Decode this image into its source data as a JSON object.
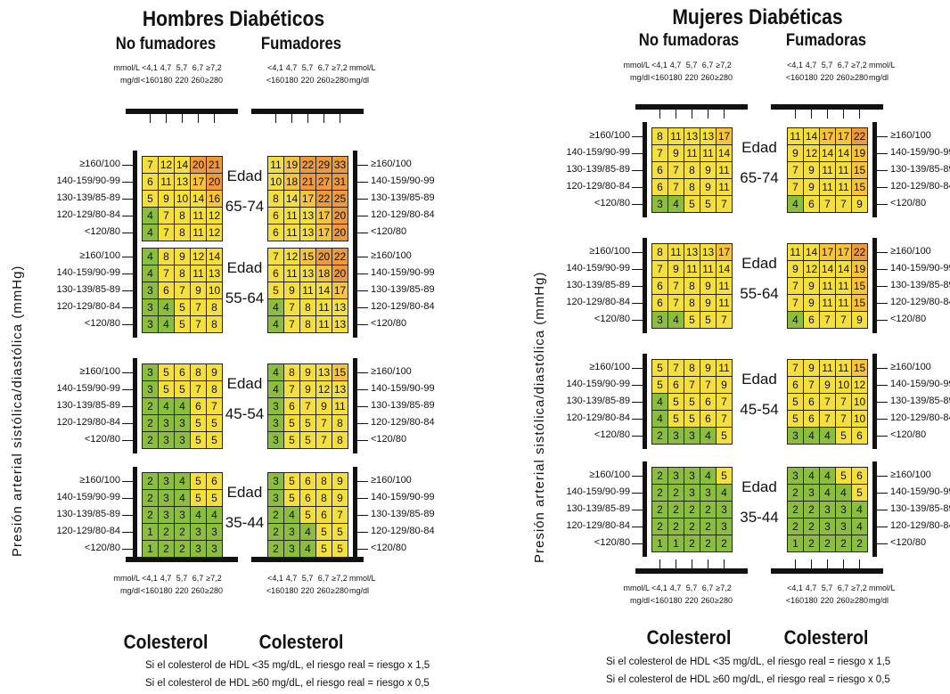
{
  "chart_data": {
    "type": "table",
    "ylabel": "Presión arterial sistólica/diastólica (mmHg)",
    "bp_rows": [
      "≥160/100",
      "140-159/90-99",
      "130-139/85-89",
      "120-129/80-84",
      "<120/80"
    ],
    "age_label": "Edad",
    "chol_mmol_row": {
      "unit": "mmol/L",
      "values": [
        "<4,1",
        "4,7",
        "5,7",
        "6,7",
        "≥7,2"
      ]
    },
    "chol_mgdl_row": {
      "unit": "mg/dl",
      "values": [
        "<160",
        "180",
        "220",
        "260",
        "≥280"
      ]
    },
    "chol_mmol_row_right": {
      "unit": "mmol/L",
      "values": [
        "<4,1",
        "4,7",
        "5,7",
        "6,7",
        "≥7,2"
      ]
    },
    "chol_mgdl_row_right": {
      "unit": "mg/dl",
      "values": [
        "<160",
        "180",
        "220",
        "260",
        "≥280"
      ]
    },
    "colors": {
      "green": "#8cbd3f",
      "yellow": "#f5df3c",
      "amber": "#f6c33b",
      "orange": "#ee9a3a"
    },
    "panels": [
      {
        "title": "Hombres Diabéticos",
        "subtitle_left": "No fumadores",
        "subtitle_right": "Fumadores",
        "footer_left": "Colesterol",
        "footer_right": "Colesterol",
        "notes": [
          "Si el colesterol de HDL <35 mg/dL, el riesgo real = riesgo x 1,5",
          "Si el colesterol de HDL ≥60 mg/dL, el riesgo real = riesgo x 0,5"
        ],
        "ages": [
          {
            "label": "65-74",
            "left": [
              [
                7,
                12,
                14,
                20,
                21
              ],
              [
                6,
                11,
                13,
                17,
                20
              ],
              [
                5,
                9,
                10,
                14,
                16
              ],
              [
                4,
                7,
                8,
                11,
                12
              ],
              [
                4,
                7,
                8,
                11,
                12
              ]
            ],
            "right": [
              [
                11,
                19,
                22,
                29,
                33
              ],
              [
                10,
                18,
                21,
                27,
                31
              ],
              [
                8,
                14,
                17,
                22,
                25
              ],
              [
                6,
                11,
                13,
                17,
                20
              ],
              [
                6,
                11,
                13,
                17,
                20
              ]
            ]
          },
          {
            "label": "55-64",
            "left": [
              [
                4,
                8,
                9,
                12,
                14
              ],
              [
                4,
                7,
                8,
                11,
                13
              ],
              [
                3,
                6,
                7,
                9,
                10
              ],
              [
                3,
                4,
                5,
                7,
                8
              ],
              [
                3,
                4,
                5,
                7,
                8
              ]
            ],
            "right": [
              [
                7,
                12,
                15,
                20,
                22
              ],
              [
                6,
                11,
                13,
                18,
                20
              ],
              [
                5,
                9,
                11,
                14,
                17
              ],
              [
                4,
                7,
                8,
                11,
                13
              ],
              [
                4,
                7,
                8,
                11,
                13
              ]
            ]
          },
          {
            "label": "45-54",
            "left": [
              [
                3,
                5,
                6,
                8,
                9
              ],
              [
                3,
                5,
                5,
                7,
                8
              ],
              [
                2,
                4,
                4,
                6,
                7
              ],
              [
                2,
                3,
                3,
                5,
                5
              ],
              [
                2,
                3,
                3,
                5,
                5
              ]
            ],
            "right": [
              [
                4,
                8,
                9,
                13,
                15
              ],
              [
                4,
                7,
                9,
                12,
                13
              ],
              [
                3,
                6,
                7,
                9,
                11
              ],
              [
                3,
                5,
                5,
                7,
                8
              ],
              [
                3,
                5,
                5,
                7,
                8
              ]
            ]
          },
          {
            "label": "35-44",
            "left": [
              [
                2,
                3,
                4,
                5,
                6
              ],
              [
                2,
                3,
                4,
                5,
                5
              ],
              [
                2,
                3,
                3,
                4,
                4
              ],
              [
                1,
                2,
                2,
                3,
                3
              ],
              [
                1,
                2,
                2,
                3,
                3
              ]
            ],
            "right": [
              [
                3,
                5,
                6,
                8,
                9
              ],
              [
                3,
                5,
                6,
                8,
                9
              ],
              [
                2,
                4,
                5,
                6,
                7
              ],
              [
                2,
                3,
                4,
                5,
                5
              ],
              [
                2,
                3,
                4,
                5,
                5
              ]
            ]
          }
        ]
      },
      {
        "title": "Mujeres Diabéticas",
        "subtitle_left": "No fumadoras",
        "subtitle_right": "Fumadoras",
        "footer_left": "Colesterol",
        "footer_right": "Colesterol",
        "notes": [
          "Si el colesterol de HDL <35 mg/dL, el riesgo real = riesgo x 1,5",
          "Si el colesterol de HDL ≥60 mg/dL, el riesgo real = riesgo x 0,5"
        ],
        "ages": [
          {
            "label": "65-74",
            "left": [
              [
                8,
                11,
                13,
                13,
                17
              ],
              [
                7,
                9,
                11,
                11,
                14
              ],
              [
                6,
                7,
                8,
                9,
                11
              ],
              [
                6,
                7,
                8,
                9,
                11
              ],
              [
                3,
                4,
                5,
                5,
                7
              ]
            ],
            "right": [
              [
                11,
                14,
                17,
                17,
                22
              ],
              [
                9,
                12,
                14,
                14,
                19
              ],
              [
                7,
                9,
                11,
                11,
                15
              ],
              [
                7,
                9,
                11,
                11,
                15
              ],
              [
                4,
                6,
                7,
                7,
                9
              ]
            ]
          },
          {
            "label": "55-64",
            "left": [
              [
                8,
                11,
                13,
                13,
                17
              ],
              [
                7,
                9,
                11,
                11,
                14
              ],
              [
                6,
                7,
                8,
                9,
                11
              ],
              [
                6,
                7,
                8,
                9,
                11
              ],
              [
                3,
                4,
                5,
                5,
                7
              ]
            ],
            "right": [
              [
                11,
                14,
                17,
                17,
                22
              ],
              [
                9,
                12,
                14,
                14,
                19
              ],
              [
                7,
                9,
                11,
                11,
                15
              ],
              [
                7,
                9,
                11,
                11,
                15
              ],
              [
                4,
                6,
                7,
                7,
                9
              ]
            ]
          },
          {
            "label": "45-54",
            "left": [
              [
                5,
                7,
                8,
                9,
                11
              ],
              [
                5,
                6,
                7,
                7,
                9
              ],
              [
                4,
                5,
                5,
                6,
                7
              ],
              [
                4,
                5,
                5,
                6,
                7
              ],
              [
                2,
                3,
                3,
                4,
                5
              ]
            ],
            "right": [
              [
                7,
                9,
                11,
                11,
                15
              ],
              [
                6,
                7,
                9,
                10,
                12
              ],
              [
                5,
                6,
                7,
                7,
                10
              ],
              [
                5,
                6,
                7,
                7,
                10
              ],
              [
                3,
                4,
                4,
                5,
                6
              ]
            ]
          },
          {
            "label": "35-44",
            "left": [
              [
                2,
                3,
                3,
                4,
                5
              ],
              [
                2,
                2,
                3,
                3,
                4
              ],
              [
                2,
                2,
                2,
                2,
                3
              ],
              [
                2,
                2,
                2,
                2,
                3
              ],
              [
                1,
                1,
                2,
                2,
                2
              ]
            ],
            "right": [
              [
                3,
                4,
                4,
                5,
                6
              ],
              [
                2,
                3,
                4,
                4,
                5
              ],
              [
                2,
                2,
                3,
                3,
                4
              ],
              [
                2,
                2,
                3,
                3,
                4
              ],
              [
                1,
                2,
                2,
                2,
                2
              ]
            ]
          }
        ]
      }
    ]
  }
}
